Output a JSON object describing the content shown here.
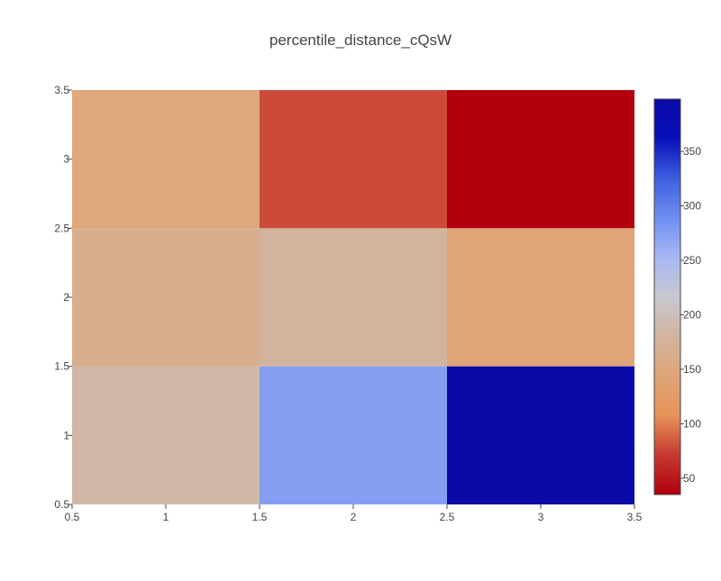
{
  "chart_data": {
    "type": "heatmap",
    "title": "percentile_distance_cQsW",
    "xlabel": "",
    "ylabel": "",
    "x": [
      1,
      2,
      3
    ],
    "y": [
      1,
      2,
      3
    ],
    "z": [
      [
        185,
        275,
        398
      ],
      [
        165,
        180,
        145
      ],
      [
        148,
        78,
        35
      ]
    ],
    "xlim": [
      0.5,
      3.5
    ],
    "ylim": [
      0.5,
      3.5
    ],
    "x_ticks": [
      "0.5",
      "1",
      "1.5",
      "2",
      "2.5",
      "3",
      "3.5"
    ],
    "y_ticks": [
      "0.5",
      "1",
      "1.5",
      "2",
      "2.5",
      "3",
      "3.5"
    ],
    "colorbar": {
      "min": 35,
      "max": 398,
      "ticks": [
        "50",
        "100",
        "150",
        "200",
        "250",
        "300",
        "350"
      ],
      "colorscale": [
        "#b2000e",
        "#c53a31",
        "#e6935a",
        "#dfa578",
        "#d2b49e",
        "#c8c8d2",
        "#a7b7f2",
        "#6f8ef2",
        "#3e5ee0",
        "#0810b8",
        "#0a0aa8"
      ]
    }
  }
}
